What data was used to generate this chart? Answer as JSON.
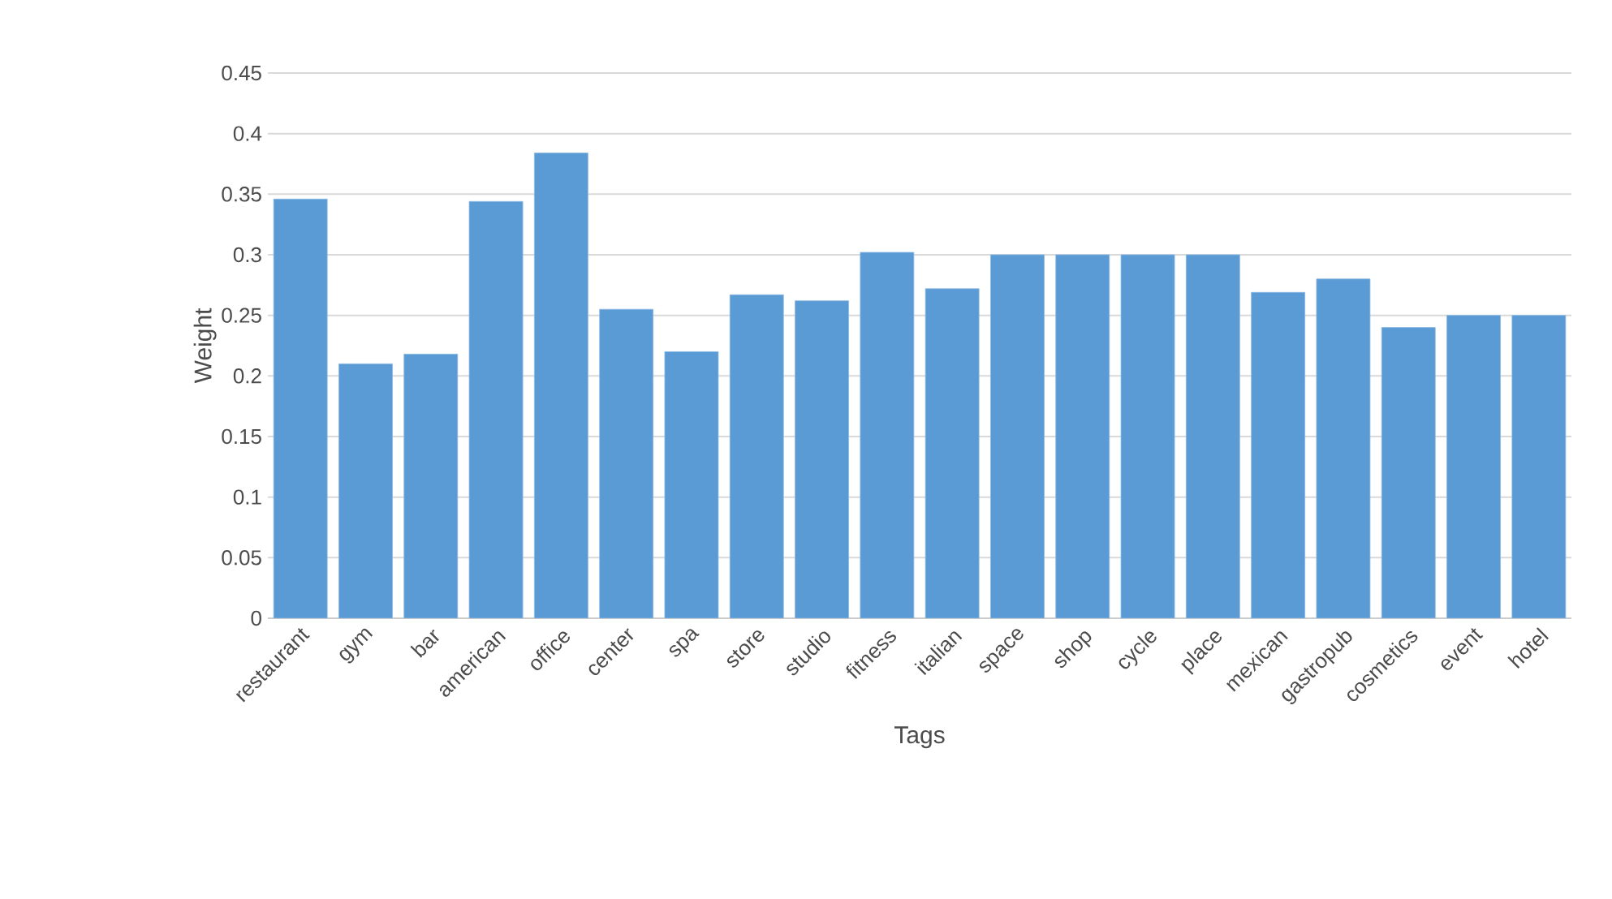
{
  "chart_data": {
    "type": "bar",
    "xlabel": "Tags",
    "ylabel": "Weight",
    "categories": [
      "restaurant",
      "gym",
      "bar",
      "american",
      "office",
      "center",
      "spa",
      "store",
      "studio",
      "fitness",
      "italian",
      "space",
      "shop",
      "cycle",
      "place",
      "mexican",
      "gastropub",
      "cosmetics",
      "event",
      "hotel"
    ],
    "values": [
      0.346,
      0.21,
      0.218,
      0.344,
      0.384,
      0.255,
      0.22,
      0.267,
      0.262,
      0.302,
      0.272,
      0.3,
      0.3,
      0.3,
      0.3,
      0.269,
      0.28,
      0.24,
      0.25,
      0.25
    ],
    "color": "#5b9bd5",
    "ylim": [
      0,
      0.45
    ],
    "yticks": [
      0,
      0.05,
      0.1,
      0.15,
      0.2,
      0.25,
      0.3,
      0.35,
      0.4,
      0.45
    ],
    "grid": "y"
  }
}
